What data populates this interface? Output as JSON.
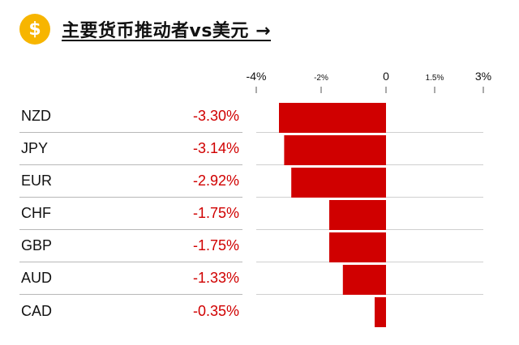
{
  "header": {
    "title": "主要货币推动者vs美元 →",
    "icon": "dollar-coin-icon",
    "icon_glyph": "$",
    "icon_color": "#f7b500"
  },
  "colors": {
    "bar": "#d00000",
    "negative_text": "#d00000"
  },
  "rows": [
    {
      "currency": "NZD",
      "change": "-3.30%"
    },
    {
      "currency": "JPY",
      "change": "-3.14%"
    },
    {
      "currency": "EUR",
      "change": "-2.92%"
    },
    {
      "currency": "CHF",
      "change": "-1.75%"
    },
    {
      "currency": "GBP",
      "change": "-1.75%"
    },
    {
      "currency": "AUD",
      "change": "-1.33%"
    },
    {
      "currency": "CAD",
      "change": "-0.35%"
    }
  ],
  "chart_data": {
    "type": "bar",
    "orientation": "horizontal",
    "categories": [
      "NZD",
      "JPY",
      "EUR",
      "CHF",
      "GBP",
      "AUD",
      "CAD"
    ],
    "values": [
      -3.3,
      -3.14,
      -2.92,
      -1.75,
      -1.75,
      -1.33,
      -0.35
    ],
    "xlim": [
      -4,
      3
    ],
    "ticks": [
      {
        "value": -4,
        "label": "-4%",
        "major": true
      },
      {
        "value": -2,
        "label": "-2%",
        "major": false
      },
      {
        "value": 0,
        "label": "0",
        "major": true
      },
      {
        "value": 1.5,
        "label": "1.5%",
        "major": false
      },
      {
        "value": 3,
        "label": "3%",
        "major": true
      }
    ],
    "unit": "%"
  }
}
